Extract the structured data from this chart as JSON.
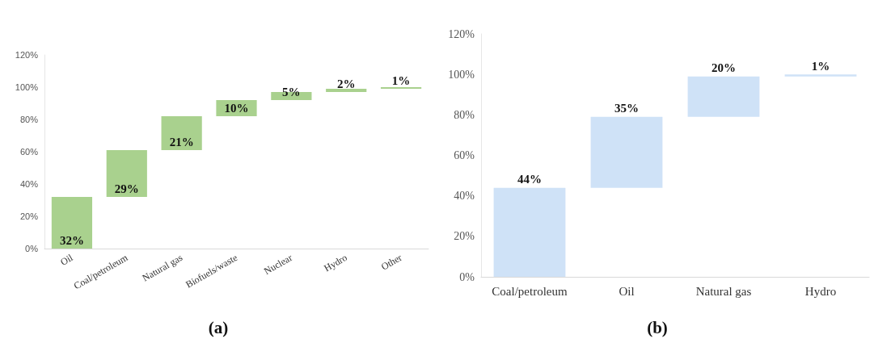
{
  "chart_data": [
    {
      "type": "bar",
      "title": "(a)",
      "categories": [
        "Oil",
        "Coal/petroleum",
        "Natural gas",
        "Biofuels/waste",
        "Nuclear",
        "Hydro",
        "Other"
      ],
      "values": [
        32,
        29,
        21,
        10,
        5,
        2,
        1
      ],
      "base": [
        0,
        32,
        61,
        82,
        92,
        97,
        99
      ],
      "color": "#a9d18e",
      "value_labels": [
        "32%",
        "29%",
        "21%",
        "10%",
        "5%",
        "2%",
        "1%"
      ],
      "ylim": [
        0,
        120
      ],
      "yticks": [
        {
          "value": 0,
          "label": "0%"
        },
        {
          "value": 20,
          "label": "20%"
        },
        {
          "value": 40,
          "label": "40%"
        },
        {
          "value": 60,
          "label": "60%"
        },
        {
          "value": 80,
          "label": "80%"
        },
        {
          "value": 100,
          "label": "100%"
        },
        {
          "value": 120,
          "label": "120%"
        }
      ],
      "grid": false
    },
    {
      "type": "bar",
      "title": "(b)",
      "categories": [
        "Coal/petroleum",
        "Oil",
        "Natural gas",
        "Hydro"
      ],
      "values": [
        44,
        35,
        20,
        1
      ],
      "base": [
        0,
        44,
        79,
        99
      ],
      "color": "#cfe2f7",
      "value_labels": [
        "44%",
        "35%",
        "20%",
        "1%"
      ],
      "ylim": [
        0,
        120
      ],
      "yticks": [
        {
          "value": 0,
          "label": "0%"
        },
        {
          "value": 20,
          "label": "20%"
        },
        {
          "value": 40,
          "label": "40%"
        },
        {
          "value": 60,
          "label": "60%"
        },
        {
          "value": 80,
          "label": "80%"
        },
        {
          "value": 100,
          "label": "100%"
        },
        {
          "value": 120,
          "label": "120%"
        }
      ],
      "grid": false
    }
  ]
}
